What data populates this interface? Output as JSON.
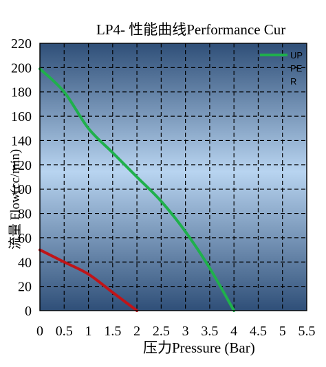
{
  "chart_data": {
    "type": "line",
    "title": "LP4- 性能曲线Performance Cur",
    "xlabel": "压力Pressure (Bar)",
    "ylabel": "流量 Flow(cc/min)",
    "xlim": [
      0,
      5.5
    ],
    "ylim": [
      0,
      220
    ],
    "x_ticks": [
      "0",
      "0.5",
      "1",
      "1.5",
      "2",
      "2.5",
      "3",
      "3.5",
      "4",
      "4.5",
      "5",
      "5.5"
    ],
    "y_ticks": [
      "0",
      "20",
      "40",
      "60",
      "80",
      "100",
      "120",
      "140",
      "160",
      "180",
      "200",
      "220"
    ],
    "grid": true,
    "legend_position": "top-right",
    "legend_lines": [
      "UP",
      "PE",
      "R"
    ],
    "series": [
      {
        "name": "UPPER",
        "color": "#1fb04c",
        "x": [
          0,
          0.5,
          1.0,
          1.5,
          2.0,
          2.5,
          3.0,
          3.5,
          4.0
        ],
        "y": [
          199,
          180,
          150,
          130,
          110,
          90,
          65,
          35,
          0
        ]
      },
      {
        "color": "#c01418",
        "x": [
          0,
          0.5,
          1.0,
          1.5,
          2.0
        ],
        "y": [
          50,
          40,
          30,
          15,
          0
        ]
      }
    ]
  }
}
